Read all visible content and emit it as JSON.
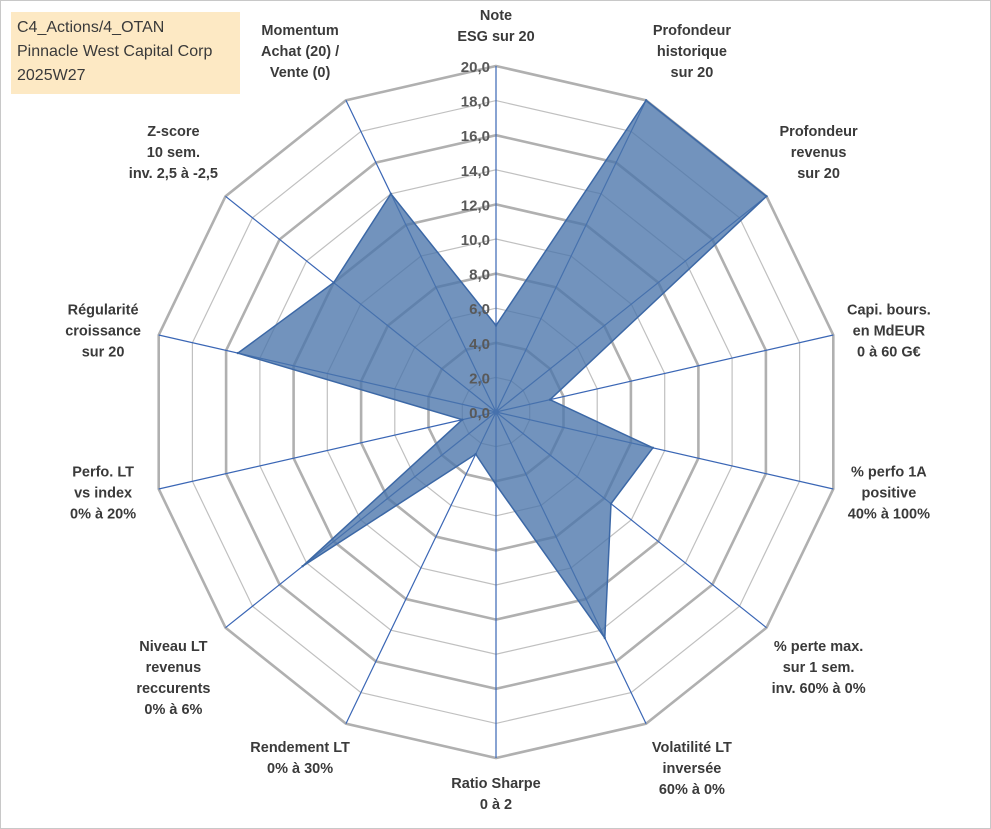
{
  "title_lines": [
    "C4_Actions/4_OTAN",
    "Pinnacle West Capital Corp",
    "2025W27"
  ],
  "chart_data": {
    "type": "radar",
    "rmin": 0,
    "rmax": 20,
    "tick_step": 2,
    "tick_labels": [
      "0,0",
      "2,0",
      "4,0",
      "6,0",
      "8,0",
      "10,0",
      "12,0",
      "14,0",
      "16,0",
      "18,0",
      "20,0"
    ],
    "axes": [
      {
        "label": [
          "Note",
          "ESG sur 20"
        ],
        "value": 5.0
      },
      {
        "label": [
          "Profondeur",
          "historique",
          "sur 20"
        ],
        "value": 20.0
      },
      {
        "label": [
          "Profondeur",
          "revenus",
          "sur 20"
        ],
        "value": 20.0
      },
      {
        "label": [
          "Capi. bours.",
          "en MdEUR",
          "0 à 60 G€"
        ],
        "value": 3.2
      },
      {
        "label": [
          "% perfo 1A",
          "positive",
          "40% à 100%"
        ],
        "value": 9.3
      },
      {
        "label": [
          "% perte max.",
          "sur 1 sem.",
          "inv. 60% à 0%"
        ],
        "value": 8.5
      },
      {
        "label": [
          "Volatilité LT",
          "inversée",
          "60% à 0%"
        ],
        "value": 14.5
      },
      {
        "label": [
          "Ratio Sharpe",
          "0 à 2"
        ],
        "value": 4.2
      },
      {
        "label": [
          "Rendement LT",
          "0% à 30%"
        ],
        "value": 2.7
      },
      {
        "label": [
          "Niveau LT",
          "revenus",
          "reccurents",
          "0% à 6%"
        ],
        "value": 14.3
      },
      {
        "label": [
          "Perfo. LT",
          "vs index",
          "0% à 20%"
        ],
        "value": 2.0
      },
      {
        "label": [
          "Régularité",
          "croissance",
          "sur 20"
        ],
        "value": 15.3
      },
      {
        "label": [
          "Z-score",
          "10 sem.",
          "inv. 2,5 à -2,5"
        ],
        "value": 12.0
      },
      {
        "label": [
          "Momentum",
          "Achat (20) /",
          "Vente (0)"
        ],
        "value": 14.0
      }
    ],
    "colors": {
      "area_fill": "#4a75aa",
      "area_line": "#3c68a6",
      "spoke": "#3a66b5",
      "grid": "#c0c0c0",
      "grid_outer": "#b0b0b0"
    }
  }
}
